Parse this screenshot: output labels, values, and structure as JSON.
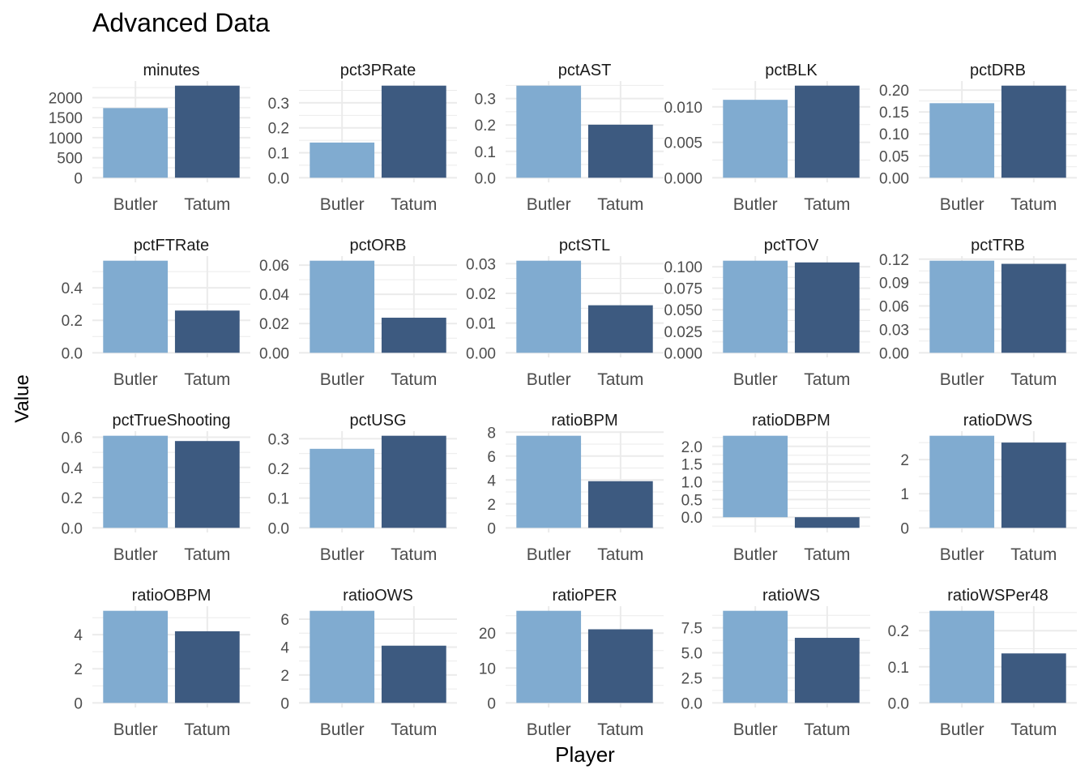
{
  "title": "Advanced Data",
  "xlabel": "Player",
  "ylabel": "Value",
  "colors": {
    "Butler": "#80abd0",
    "Tatum": "#3d5a80",
    "grid": "#ebebeb",
    "text": "#4d4d4d"
  },
  "chart_data": {
    "type": "bar",
    "title": "Advanced Data",
    "xlabel": "Player",
    "ylabel": "Value",
    "categories": [
      "Butler",
      "Tatum"
    ],
    "grid": true,
    "facets": [
      {
        "name": "minutes",
        "values": [
          1740,
          2300
        ],
        "ylim": [
          0,
          2300
        ],
        "ticks": [
          0,
          500,
          1000,
          1500,
          2000
        ],
        "tick_labels": [
          "0",
          "500",
          "1000",
          "1500",
          "2000"
        ]
      },
      {
        "name": "pct3PRate",
        "values": [
          0.141,
          0.369
        ],
        "ylim": [
          0,
          0.369
        ],
        "ticks": [
          0,
          0.1,
          0.2,
          0.3
        ],
        "tick_labels": [
          "0.0",
          "0.1",
          "0.2",
          "0.3"
        ]
      },
      {
        "name": "pctAST",
        "values": [
          0.349,
          0.201
        ],
        "ylim": [
          0,
          0.349
        ],
        "ticks": [
          0,
          0.1,
          0.2,
          0.3
        ],
        "tick_labels": [
          "0.0",
          "0.1",
          "0.2",
          "0.3"
        ]
      },
      {
        "name": "pctBLK",
        "values": [
          0.011,
          0.013
        ],
        "ylim": [
          0,
          0.013
        ],
        "ticks": [
          0,
          0.005,
          0.01
        ],
        "tick_labels": [
          "0.000",
          "0.005",
          "0.010"
        ]
      },
      {
        "name": "pctDRB",
        "values": [
          0.17,
          0.21
        ],
        "ylim": [
          0,
          0.21
        ],
        "ticks": [
          0,
          0.05,
          0.1,
          0.15,
          0.2
        ],
        "tick_labels": [
          "0.00",
          "0.05",
          "0.10",
          "0.15",
          "0.20"
        ]
      },
      {
        "name": "pctFTRate",
        "values": [
          0.567,
          0.26
        ],
        "ylim": [
          0,
          0.567
        ],
        "ticks": [
          0,
          0.2,
          0.4
        ],
        "tick_labels": [
          "0.0",
          "0.2",
          "0.4"
        ]
      },
      {
        "name": "pctORB",
        "values": [
          0.063,
          0.024
        ],
        "ylim": [
          0,
          0.063
        ],
        "ticks": [
          0,
          0.02,
          0.04,
          0.06
        ],
        "tick_labels": [
          "0.00",
          "0.02",
          "0.04",
          "0.06"
        ]
      },
      {
        "name": "pctSTL",
        "values": [
          0.031,
          0.016
        ],
        "ylim": [
          0,
          0.031
        ],
        "ticks": [
          0,
          0.01,
          0.02,
          0.03
        ],
        "tick_labels": [
          "0.00",
          "0.01",
          "0.02",
          "0.03"
        ]
      },
      {
        "name": "pctTOV",
        "values": [
          0.107,
          0.105
        ],
        "ylim": [
          0,
          0.107
        ],
        "ticks": [
          0,
          0.025,
          0.05,
          0.075,
          0.1
        ],
        "tick_labels": [
          "0.000",
          "0.025",
          "0.050",
          "0.075",
          "0.100"
        ]
      },
      {
        "name": "pctTRB",
        "values": [
          0.118,
          0.114
        ],
        "ylim": [
          0,
          0.118
        ],
        "ticks": [
          0,
          0.03,
          0.06,
          0.09,
          0.12
        ],
        "tick_labels": [
          "0.00",
          "0.03",
          "0.06",
          "0.09",
          "0.12"
        ]
      },
      {
        "name": "pctTrueShooting",
        "values": [
          0.61,
          0.575
        ],
        "ylim": [
          0,
          0.61
        ],
        "ticks": [
          0,
          0.2,
          0.4,
          0.6
        ],
        "tick_labels": [
          "0.0",
          "0.2",
          "0.4",
          "0.6"
        ]
      },
      {
        "name": "pctUSG",
        "values": [
          0.266,
          0.31
        ],
        "ylim": [
          0,
          0.31
        ],
        "ticks": [
          0,
          0.1,
          0.2,
          0.3
        ],
        "tick_labels": [
          "0.0",
          "0.1",
          "0.2",
          "0.3"
        ]
      },
      {
        "name": "ratioBPM",
        "values": [
          7.7,
          3.9
        ],
        "ylim": [
          0,
          7.7
        ],
        "ticks": [
          0,
          2,
          4,
          6,
          8
        ],
        "tick_labels": [
          "0",
          "2",
          "4",
          "6",
          "8"
        ]
      },
      {
        "name": "ratioDBPM",
        "values": [
          2.3,
          -0.3
        ],
        "ylim": [
          -0.3,
          2.3
        ],
        "ticks": [
          0,
          0.5,
          1,
          1.5,
          2
        ],
        "tick_labels": [
          "0.0",
          "0.5",
          "1.0",
          "1.5",
          "2.0"
        ]
      },
      {
        "name": "ratioDWS",
        "values": [
          2.7,
          2.5
        ],
        "ylim": [
          0,
          2.7
        ],
        "ticks": [
          0,
          1,
          2
        ],
        "tick_labels": [
          "0",
          "1",
          "2"
        ]
      },
      {
        "name": "ratioOBPM",
        "values": [
          5.4,
          4.2
        ],
        "ylim": [
          0,
          5.4
        ],
        "ticks": [
          0,
          2,
          4
        ],
        "tick_labels": [
          "0",
          "2",
          "4"
        ]
      },
      {
        "name": "ratioOWS",
        "values": [
          6.6,
          4.1
        ],
        "ylim": [
          0,
          6.6
        ],
        "ticks": [
          0,
          2,
          4,
          6
        ],
        "tick_labels": [
          "0",
          "2",
          "4",
          "6"
        ]
      },
      {
        "name": "ratioPER",
        "values": [
          26.4,
          21.1
        ],
        "ylim": [
          0,
          26.4
        ],
        "ticks": [
          0,
          10,
          20
        ],
        "tick_labels": [
          "0",
          "10",
          "20"
        ]
      },
      {
        "name": "ratioWS",
        "values": [
          9.2,
          6.5
        ],
        "ylim": [
          0,
          9.2
        ],
        "ticks": [
          0,
          2.5,
          5,
          7.5
        ],
        "tick_labels": [
          "0.0",
          "2.5",
          "5.0",
          "7.5"
        ]
      },
      {
        "name": "ratioWSPer48",
        "values": [
          0.255,
          0.137
        ],
        "ylim": [
          0,
          0.255
        ],
        "ticks": [
          0,
          0.1,
          0.2
        ],
        "tick_labels": [
          "0.0",
          "0.1",
          "0.2"
        ]
      }
    ]
  }
}
